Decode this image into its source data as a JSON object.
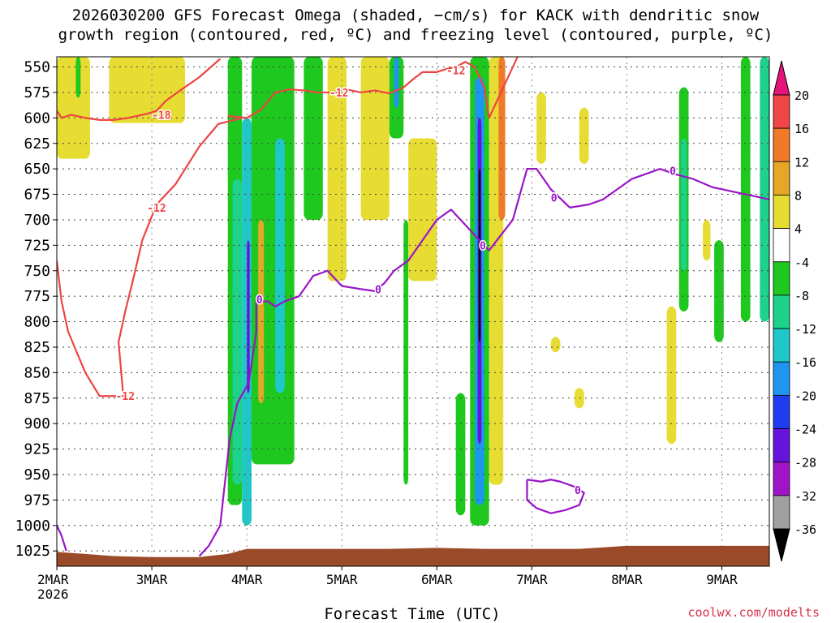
{
  "title": {
    "line1": "2026030200 GFS Forecast Omega (shaded, −cm/s) for KACK with dendritic snow",
    "line2": "growth region (contoured, red, ºC) and freezing level (contoured, purple, ºC)"
  },
  "credit": "coolwx.com/modelts",
  "chart_data": {
    "type": "heatmap",
    "xlabel": "Forecast Time (UTC)",
    "ylabel": "",
    "x_ticks": [
      "2MAR",
      "3MAR",
      "4MAR",
      "5MAR",
      "6MAR",
      "7MAR",
      "8MAR",
      "9MAR"
    ],
    "x_tick_days": [
      2,
      3,
      4,
      5,
      6,
      7,
      8,
      9
    ],
    "x_first_tick_sublabel": "2026",
    "xlim_days": [
      2,
      9.5
    ],
    "y_ticks": [
      550,
      575,
      600,
      625,
      650,
      675,
      700,
      725,
      750,
      775,
      800,
      825,
      850,
      875,
      900,
      925,
      950,
      975,
      1000,
      1025
    ],
    "ylim_hpa": [
      540,
      1040
    ],
    "y_reversed": true,
    "grid": true,
    "colorbar": {
      "labels": [
        "20",
        "16",
        "12",
        "8",
        "4",
        "-4",
        "-8",
        "-12",
        "-16",
        "-20",
        "-24",
        "-28",
        "-32",
        "-36"
      ],
      "bins": [
        {
          "range": "16 to 20",
          "color": "#f04646"
        },
        {
          "range": "12 to 16",
          "color": "#f07a28"
        },
        {
          "range": "8 to 12",
          "color": "#e6a628"
        },
        {
          "range": "4 to 8",
          "color": "#e6dc32"
        },
        {
          "range": "-4 to 4",
          "color": "#ffffff"
        },
        {
          "range": "-8 to -4",
          "color": "#1ec81e"
        },
        {
          "range": "-12 to -8",
          "color": "#1ed28c"
        },
        {
          "range": "-16 to -12",
          "color": "#1ec8c8"
        },
        {
          "range": "-20 to -16",
          "color": "#1e96f0"
        },
        {
          "range": "-24 to -20",
          "color": "#1e3cf0"
        },
        {
          "range": "-28 to -24",
          "color": "#6414dc"
        },
        {
          "range": "-32 to -28",
          "color": "#a014c8"
        },
        {
          "range": "-36 to -32",
          "color": "#a0a0a0"
        }
      ],
      "overflow_high_color": "#e6147a",
      "overflow_low_color": "#000000"
    },
    "contours": [
      {
        "name": "-18",
        "color": "#ee4444",
        "label_at": [
          2.95,
          598
        ],
        "points": [
          [
            2.0,
            593
          ],
          [
            2.05,
            600
          ],
          [
            2.15,
            597
          ],
          [
            2.3,
            600
          ],
          [
            2.45,
            602
          ],
          [
            2.6,
            602
          ],
          [
            2.75,
            600
          ],
          [
            2.95,
            596
          ],
          [
            3.05,
            593
          ],
          [
            3.15,
            583
          ],
          [
            3.3,
            573
          ],
          [
            3.5,
            560
          ],
          [
            3.72,
            542
          ]
        ]
      },
      {
        "name": "-12 (upper)",
        "color": "#ee4444",
        "label_at": [
          5.05,
          575
        ],
        "points": [
          [
            3.8,
            598
          ],
          [
            4.0,
            600
          ],
          [
            4.15,
            592
          ],
          [
            4.3,
            575
          ],
          [
            4.45,
            572
          ],
          [
            4.6,
            573
          ],
          [
            4.75,
            575
          ],
          [
            4.9,
            575
          ],
          [
            5.05,
            572
          ],
          [
            5.2,
            575
          ],
          [
            5.35,
            573
          ],
          [
            5.5,
            576
          ],
          [
            5.65,
            570
          ],
          [
            5.75,
            562
          ],
          [
            5.85,
            555
          ],
          [
            6.0,
            555
          ],
          [
            6.1,
            552
          ],
          [
            6.2,
            550
          ],
          [
            6.3,
            545
          ],
          [
            6.4,
            550
          ],
          [
            6.5,
            570
          ],
          [
            6.55,
            600
          ],
          [
            6.7,
            570
          ],
          [
            6.85,
            540
          ]
        ]
      },
      {
        "name": "-12 (lower)",
        "color": "#ee4444",
        "label_at": [
          2.82,
          690
        ],
        "points": [
          [
            2.0,
            740
          ],
          [
            2.05,
            780
          ],
          [
            2.12,
            810
          ],
          [
            2.3,
            850
          ],
          [
            2.45,
            873
          ],
          [
            2.7,
            873
          ],
          [
            2.65,
            820
          ],
          [
            2.72,
            790
          ],
          [
            2.8,
            760
          ],
          [
            2.9,
            720
          ],
          [
            3.05,
            685
          ],
          [
            3.25,
            665
          ],
          [
            3.5,
            628
          ],
          [
            3.7,
            606
          ],
          [
            3.95,
            600
          ]
        ]
      },
      {
        "name": "0",
        "color": "#9a14c8",
        "label_at": [
          5.4,
          765
        ],
        "points": [
          [
            3.5,
            1030
          ],
          [
            3.6,
            1020
          ],
          [
            3.72,
            1000
          ],
          [
            3.82,
            915
          ],
          [
            3.9,
            880
          ],
          [
            4.02,
            860
          ],
          [
            4.1,
            810
          ],
          [
            4.1,
            780
          ],
          [
            4.22,
            780
          ],
          [
            4.3,
            785
          ],
          [
            4.4,
            780
          ],
          [
            4.55,
            775
          ],
          [
            4.7,
            755
          ],
          [
            4.85,
            750
          ],
          [
            5.0,
            765
          ],
          [
            5.2,
            768
          ],
          [
            5.35,
            770
          ],
          [
            5.45,
            762
          ],
          [
            5.55,
            750
          ],
          [
            5.7,
            740
          ],
          [
            5.85,
            720
          ],
          [
            6.0,
            700
          ],
          [
            6.15,
            690
          ],
          [
            6.3,
            705
          ],
          [
            6.45,
            720
          ],
          [
            6.55,
            730
          ],
          [
            6.65,
            718
          ],
          [
            6.8,
            700
          ],
          [
            6.95,
            650
          ],
          [
            7.05,
            650
          ],
          [
            7.2,
            670
          ],
          [
            7.4,
            688
          ],
          [
            7.6,
            685
          ],
          [
            7.75,
            680
          ],
          [
            7.9,
            670
          ],
          [
            8.05,
            660
          ],
          [
            8.2,
            655
          ],
          [
            8.35,
            650
          ],
          [
            8.5,
            655
          ],
          [
            8.7,
            660
          ],
          [
            8.9,
            668
          ],
          [
            9.1,
            672
          ],
          [
            9.3,
            676
          ],
          [
            9.5,
            680
          ]
        ]
      },
      {
        "name": "0 (near surface)",
        "color": "#9a14c8",
        "label_at": [
          2.0,
          1000
        ],
        "points": [
          [
            2.0,
            1000
          ],
          [
            2.05,
            1010
          ],
          [
            2.1,
            1025
          ]
        ]
      },
      {
        "name": "0 (closed)",
        "color": "#9a14c8",
        "label_at": [
          7.5,
          975
        ],
        "points": [
          [
            6.95,
            955
          ],
          [
            7.1,
            957
          ],
          [
            7.2,
            955
          ],
          [
            7.3,
            957
          ],
          [
            7.45,
            962
          ],
          [
            7.55,
            968
          ],
          [
            7.5,
            980
          ],
          [
            7.35,
            985
          ],
          [
            7.2,
            988
          ],
          [
            7.05,
            983
          ],
          [
            6.95,
            975
          ],
          [
            6.95,
            955
          ]
        ]
      }
    ],
    "contour_labels": [
      {
        "text": "-18",
        "day": 3.0,
        "hpa": 597
      },
      {
        "text": "-12",
        "day": 4.87,
        "hpa": 575
      },
      {
        "text": "-12",
        "day": 6.1,
        "hpa": 553
      },
      {
        "text": "-12",
        "day": 2.95,
        "hpa": 688
      },
      {
        "text": "-12",
        "day": 2.62,
        "hpa": 873
      },
      {
        "text": "0",
        "day": 4.1,
        "hpa": 778
      },
      {
        "text": "0",
        "day": 5.35,
        "hpa": 768
      },
      {
        "text": "0",
        "day": 6.45,
        "hpa": 725
      },
      {
        "text": "0",
        "day": 7.2,
        "hpa": 678
      },
      {
        "text": "0",
        "day": 8.45,
        "hpa": 652
      },
      {
        "text": "0",
        "day": 7.45,
        "hpa": 965
      }
    ],
    "shaded_regions": [
      {
        "value": 6,
        "day0": 2.0,
        "day1": 2.35,
        "p0": 540,
        "p1": 640
      },
      {
        "value": 6,
        "day0": 2.55,
        "day1": 3.35,
        "p0": 540,
        "p1": 605
      },
      {
        "value": -6,
        "day0": 2.2,
        "day1": 2.25,
        "p0": 540,
        "p1": 580
      },
      {
        "value": -6,
        "day0": 3.8,
        "day1": 3.95,
        "p0": 540,
        "p1": 980
      },
      {
        "value": -10,
        "day0": 3.85,
        "day1": 3.95,
        "p0": 660,
        "p1": 960
      },
      {
        "value": -14,
        "day0": 3.95,
        "day1": 4.05,
        "p0": 600,
        "p1": 1000
      },
      {
        "value": -26,
        "day0": 4.0,
        "day1": 4.03,
        "p0": 720,
        "p1": 870
      },
      {
        "value": -6,
        "day0": 4.05,
        "day1": 4.5,
        "p0": 540,
        "p1": 940
      },
      {
        "value": -14,
        "day0": 4.3,
        "day1": 4.4,
        "p0": 620,
        "p1": 870
      },
      {
        "value": 10,
        "day0": 4.12,
        "day1": 4.18,
        "p0": 700,
        "p1": 880
      },
      {
        "value": -6,
        "day0": 4.6,
        "day1": 4.8,
        "p0": 540,
        "p1": 700
      },
      {
        "value": 6,
        "day0": 4.85,
        "day1": 5.05,
        "p0": 540,
        "p1": 760
      },
      {
        "value": 6,
        "day0": 5.2,
        "day1": 5.5,
        "p0": 540,
        "p1": 700
      },
      {
        "value": -6,
        "day0": 5.5,
        "day1": 5.65,
        "p0": 540,
        "p1": 620
      },
      {
        "value": -18,
        "day0": 5.55,
        "day1": 5.6,
        "p0": 540,
        "p1": 590
      },
      {
        "value": -6,
        "day0": 5.65,
        "day1": 5.7,
        "p0": 700,
        "p1": 960
      },
      {
        "value": 6,
        "day0": 5.7,
        "day1": 6.0,
        "p0": 620,
        "p1": 760
      },
      {
        "value": -6,
        "day0": 6.2,
        "day1": 6.3,
        "p0": 870,
        "p1": 990
      },
      {
        "value": -6,
        "day0": 6.35,
        "day1": 6.55,
        "p0": 540,
        "p1": 1000
      },
      {
        "value": -16,
        "day0": 6.4,
        "day1": 6.5,
        "p0": 560,
        "p1": 980
      },
      {
        "value": -26,
        "day0": 6.43,
        "day1": 6.47,
        "p0": 600,
        "p1": 920
      },
      {
        "value": -40,
        "day0": 6.44,
        "day1": 6.46,
        "p0": 650,
        "p1": 820
      },
      {
        "value": 6,
        "day0": 6.55,
        "day1": 6.7,
        "p0": 540,
        "p1": 960
      },
      {
        "value": 14,
        "day0": 6.65,
        "day1": 6.72,
        "p0": 540,
        "p1": 700
      },
      {
        "value": 6,
        "day0": 7.05,
        "day1": 7.15,
        "p0": 575,
        "p1": 645
      },
      {
        "value": 6,
        "day0": 7.5,
        "day1": 7.6,
        "p0": 590,
        "p1": 645
      },
      {
        "value": 6,
        "day0": 7.2,
        "day1": 7.3,
        "p0": 815,
        "p1": 830
      },
      {
        "value": 6,
        "day0": 7.45,
        "day1": 7.55,
        "p0": 865,
        "p1": 885
      },
      {
        "value": -6,
        "day0": 8.55,
        "day1": 8.65,
        "p0": 570,
        "p1": 790
      },
      {
        "value": -10,
        "day0": 8.57,
        "day1": 8.63,
        "p0": 620,
        "p1": 750
      },
      {
        "value": 6,
        "day0": 8.42,
        "day1": 8.52,
        "p0": 785,
        "p1": 920
      },
      {
        "value": 6,
        "day0": 8.8,
        "day1": 8.88,
        "p0": 700,
        "p1": 740
      },
      {
        "value": -6,
        "day0": 8.92,
        "day1": 9.02,
        "p0": 720,
        "p1": 820
      },
      {
        "value": -6,
        "day0": 9.2,
        "day1": 9.3,
        "p0": 540,
        "p1": 800
      },
      {
        "value": -10,
        "day0": 9.4,
        "day1": 9.5,
        "p0": 540,
        "p1": 800
      }
    ],
    "terrain": {
      "color": "#9a4a28",
      "points": [
        [
          2.0,
          1026
        ],
        [
          2.3,
          1028
        ],
        [
          2.6,
          1030
        ],
        [
          3.0,
          1031
        ],
        [
          3.5,
          1031
        ],
        [
          3.8,
          1028
        ],
        [
          4.0,
          1023
        ],
        [
          4.3,
          1023
        ],
        [
          5.0,
          1023
        ],
        [
          5.5,
          1023
        ],
        [
          6.0,
          1022
        ],
        [
          6.5,
          1023
        ],
        [
          7.0,
          1023
        ],
        [
          7.5,
          1023
        ],
        [
          8.0,
          1020
        ],
        [
          8.5,
          1020
        ],
        [
          9.0,
          1020
        ],
        [
          9.5,
          1020
        ]
      ]
    }
  }
}
